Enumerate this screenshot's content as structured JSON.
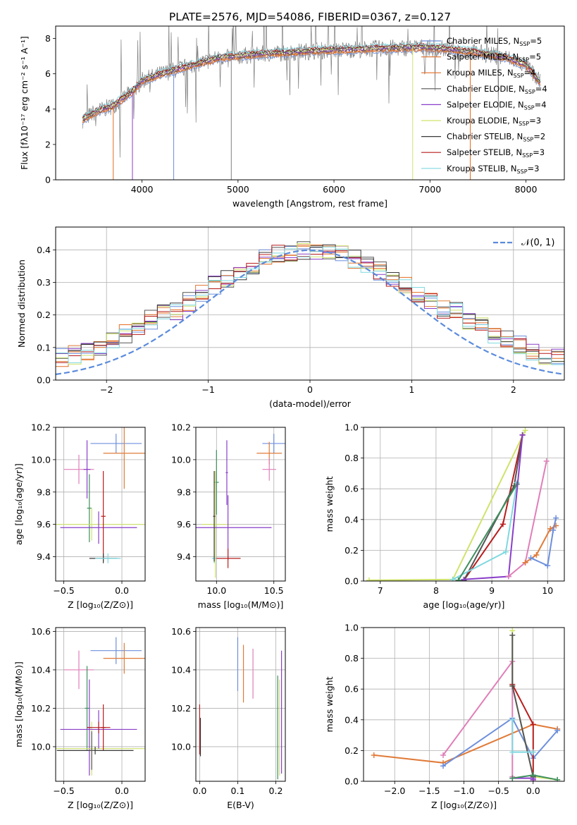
{
  "title": "PLATE=2576, MJD=54086, FIBERID=0367, z=0.127",
  "colors": {
    "chabrier_miles": "#6d8fdc",
    "salpeter_miles": "#e07b39",
    "kroupa_miles": "#e46d22",
    "chabrier_elodie": "#555555",
    "salpeter_elodie": "#8a3fc9",
    "kroupa_elodie": "#cfe36b",
    "chabrier_stelib": "#3a3a3a",
    "salpeter_stelib": "#b81d1d",
    "kroupa_stelib": "#7fd8e0",
    "pink": "#e07fb8",
    "green": "#3f8f5e",
    "gray": "#7f7f7f",
    "normal_curve": "#5b8bdc",
    "grid": "#b0b0b0"
  },
  "chart_data": [
    {
      "id": "spectrum",
      "type": "line",
      "title": "PLATE=2576, MJD=54086, FIBERID=0367, z=0.127",
      "xlabel": "wavelength [Angstrom, rest frame]",
      "ylabel": "Flux [fλ10⁻¹⁷ erg cm⁻² s⁻¹ A⁻¹]",
      "xlim": [
        3100,
        8400
      ],
      "ylim": [
        0,
        8.7
      ],
      "xticks": [
        "4000",
        "5000",
        "6000",
        "7000",
        "8000"
      ],
      "yticks": [
        "0",
        "2",
        "4",
        "6",
        "8"
      ],
      "legend_position": "top-right",
      "grid": false,
      "legend": [
        {
          "label": "Chabrier MILES, N",
          "sub": "SSP",
          "suffix": "=5",
          "color": "#6d8fdc"
        },
        {
          "label": "Salpeter MILES, N",
          "sub": "SSP",
          "suffix": "=5",
          "color": "#e07b39"
        },
        {
          "label": "Kroupa MILES, N",
          "sub": "SSP",
          "suffix": "=4",
          "color": "#e46d22"
        },
        {
          "label": "Chabrier ELODIE, N",
          "sub": "SSP",
          "suffix": "=4",
          "color": "#555555"
        },
        {
          "label": "Salpeter ELODIE, N",
          "sub": "SSP",
          "suffix": "=4",
          "color": "#8a3fc9"
        },
        {
          "label": "Kroupa ELODIE, N",
          "sub": "SSP",
          "suffix": "=3",
          "color": "#cfe36b"
        },
        {
          "label": "Chabrier STELIB, N",
          "sub": "SSP",
          "suffix": "=2",
          "color": "#3a3a3a"
        },
        {
          "label": "Salpeter STELIB, N",
          "sub": "SSP",
          "suffix": "=3",
          "color": "#b81d1d"
        },
        {
          "label": "Kroupa STELIB, N",
          "sub": "SSP",
          "suffix": "=3",
          "color": "#7fd8e0"
        }
      ],
      "continuum": {
        "x": [
          3380,
          3500,
          3700,
          3900,
          4000,
          4200,
          4400,
          4600,
          4800,
          5000,
          5200,
          5500,
          5800,
          6000,
          6300,
          6600,
          6900,
          7200,
          7500,
          7800,
          8000,
          8150
        ],
        "y": [
          3.4,
          3.8,
          4.2,
          5.0,
          5.6,
          6.0,
          6.3,
          6.6,
          6.9,
          7.0,
          7.1,
          7.2,
          7.3,
          7.35,
          7.4,
          7.45,
          7.5,
          7.4,
          7.2,
          6.9,
          6.5,
          5.5
        ]
      },
      "dropouts": [
        {
          "x": 3700,
          "color": "#e46d22"
        },
        {
          "x": 3900,
          "color": "#8a3fc9"
        },
        {
          "x": 4330,
          "color": "#6d8fdc"
        },
        {
          "x": 4930,
          "color": "#7f7f7f"
        },
        {
          "x": 6820,
          "color": "#cfe36b"
        },
        {
          "x": 7420,
          "color": "#e46d22"
        }
      ]
    },
    {
      "id": "residuals",
      "type": "line",
      "xlabel": "(data-model)/error",
      "ylabel": "Normed distribution",
      "xlim": [
        -2.5,
        2.5
      ],
      "ylim": [
        0,
        0.47
      ],
      "xticks": [
        "−2",
        "−1",
        "0",
        "1",
        "2"
      ],
      "yticks": [
        "0.0",
        "0.1",
        "0.2",
        "0.3",
        "0.4"
      ],
      "grid": true,
      "legend": [
        {
          "label": "𝒩(0, 1)",
          "color": "#5b8bdc",
          "style": "dashed"
        }
      ],
      "legend_position": "top-right",
      "histogram_bins": 40,
      "series": [
        {
          "name": "Chabrier MILES",
          "color": "#6d8fdc"
        },
        {
          "name": "Salpeter MILES",
          "color": "#e07b39"
        },
        {
          "name": "Kroupa MILES",
          "color": "#e46d22"
        },
        {
          "name": "Chabrier ELODIE",
          "color": "#555555"
        },
        {
          "name": "Salpeter ELODIE",
          "color": "#8a3fc9"
        },
        {
          "name": "Kroupa ELODIE",
          "color": "#cfe36b"
        },
        {
          "name": "Chabrier STELIB",
          "color": "#3a3a3a"
        },
        {
          "name": "Salpeter STELIB",
          "color": "#b81d1d"
        },
        {
          "name": "Kroupa STELIB",
          "color": "#7fd8e0"
        }
      ]
    },
    {
      "id": "age_vs_z",
      "type": "scatter",
      "xlabel": "Z [log₁₀(Z/Z⊙)]",
      "ylabel": "age  [log₁₀(age/yr)]",
      "xlim": [
        -0.57,
        0.2
      ],
      "ylim": [
        9.25,
        10.2
      ],
      "xticks": [
        "−0.5",
        "0.0"
      ],
      "yticks": [
        "9.4",
        "9.6",
        "9.8",
        "10.0",
        "10.2"
      ],
      "grid": true,
      "points": [
        {
          "x": -0.05,
          "y": 10.1,
          "xerr": 0.22,
          "yerr": 0.06,
          "color": "#6d8fdc"
        },
        {
          "x": 0.02,
          "y": 10.04,
          "xerr": 0.18,
          "yerr": 0.22,
          "color": "#e07b39"
        },
        {
          "x": -0.37,
          "y": 9.94,
          "xerr": 0.13,
          "yerr": 0.09,
          "color": "#e07fb8"
        },
        {
          "x": -0.3,
          "y": 9.94,
          "xerr": 0.03,
          "yerr": 0.18,
          "color": "#8a3fc9"
        },
        {
          "x": -0.28,
          "y": 9.7,
          "xerr": 0.02,
          "yerr": 0.21,
          "color": "#3f8f5e"
        },
        {
          "x": -0.26,
          "y": 9.6,
          "xerr": 0.5,
          "yerr": 0.1,
          "color": "#cfe36b"
        },
        {
          "x": -0.2,
          "y": 9.58,
          "xerr": 0.33,
          "yerr": 0.1,
          "color": "#8a3fc9"
        },
        {
          "x": -0.16,
          "y": 9.65,
          "xerr": 0.02,
          "yerr": 0.28,
          "color": "#b81d1d"
        },
        {
          "x": -0.16,
          "y": 9.39,
          "xerr": 0.12,
          "yerr": 0.03,
          "color": "#3a3a3a"
        },
        {
          "x": -0.12,
          "y": 9.39,
          "xerr": 0.11,
          "yerr": 0.03,
          "color": "#7fd8e0"
        }
      ]
    },
    {
      "id": "age_vs_mass",
      "type": "scatter",
      "xlabel": "mass [log₁₀(M/M⊙)]",
      "ylabel": "",
      "xlim": [
        9.82,
        10.6
      ],
      "ylim": [
        9.25,
        10.2
      ],
      "xticks": [
        "10.0",
        "10.5"
      ],
      "yticks": [
        "9.4",
        "9.6",
        "9.8",
        "10.0",
        "10.2"
      ],
      "grid": true,
      "points": [
        {
          "x": 10.5,
          "y": 10.1,
          "xerr": 0.1,
          "yerr": 0.06,
          "color": "#6d8fdc"
        },
        {
          "x": 10.46,
          "y": 10.04,
          "xerr": 0.11,
          "yerr": 0.07,
          "color": "#e07b39"
        },
        {
          "x": 10.46,
          "y": 9.94,
          "xerr": 0.06,
          "yerr": 0.07,
          "color": "#e07fb8"
        },
        {
          "x": 10.0,
          "y": 9.86,
          "xerr": 0.02,
          "yerr": 0.2,
          "color": "#3f8f5e"
        },
        {
          "x": 10.09,
          "y": 9.92,
          "xerr": 0.01,
          "yerr": 0.2,
          "color": "#8a3fc9"
        },
        {
          "x": 9.99,
          "y": 9.6,
          "xerr": 0.12,
          "yerr": 0.33,
          "color": "#cfe36b"
        },
        {
          "x": 10.1,
          "y": 9.58,
          "xerr": 0.38,
          "yerr": 0.2,
          "color": "#8a3fc9"
        },
        {
          "x": 10.1,
          "y": 9.39,
          "xerr": 0.11,
          "yerr": 0.06,
          "color": "#b81d1d"
        },
        {
          "x": 9.98,
          "y": 9.39,
          "xerr": 0.02,
          "yerr": 0.03,
          "color": "#7fd8e0"
        },
        {
          "x": 9.98,
          "y": 9.65,
          "xerr": 0.01,
          "yerr": 0.28,
          "color": "#3a3a3a"
        }
      ]
    },
    {
      "id": "weight_vs_age",
      "type": "line",
      "xlabel": "age  [log₁₀(age/yr)]",
      "ylabel": "mass weight",
      "xlim": [
        6.7,
        10.3
      ],
      "ylim": [
        0,
        1.0
      ],
      "xticks": [
        "7",
        "8",
        "9",
        "10"
      ],
      "yticks": [
        "0.0",
        "0.2",
        "0.4",
        "0.6",
        "0.8",
        "1.0"
      ],
      "grid": true,
      "series": [
        {
          "name": "Kroupa ELODIE",
          "color": "#cfe36b",
          "x": [
            6.8,
            8.3,
            9.6
          ],
          "y": [
            0.005,
            0.01,
            0.98
          ]
        },
        {
          "name": "Salpeter STELIB",
          "color": "#b81d1d",
          "x": [
            8.5,
            9.2,
            9.55
          ],
          "y": [
            0.005,
            0.37,
            0.95
          ]
        },
        {
          "name": "Chabrier ELODIE",
          "color": "#555555",
          "x": [
            8.5,
            9.4,
            9.55
          ],
          "y": [
            0.005,
            0.62,
            0.95
          ]
        },
        {
          "name": "Kroupa STELIB",
          "color": "#7fd8e0",
          "x": [
            8.3,
            9.25,
            9.45
          ],
          "y": [
            0.01,
            0.19,
            0.64
          ]
        },
        {
          "name": "Chabrier STELIB",
          "color": "#3f8f5e",
          "x": [
            8.4,
            9.45
          ],
          "y": [
            0.005,
            0.63
          ]
        },
        {
          "name": "Salpeter ELODIE",
          "color": "#8a3fc9",
          "x": [
            8.5,
            9.3,
            9.55
          ],
          "y": [
            0.01,
            0.03,
            0.95
          ]
        },
        {
          "name": "Pink",
          "color": "#e07fb8",
          "x": [
            9.3,
            9.6,
            9.98
          ],
          "y": [
            0.03,
            0.12,
            0.78
          ]
        },
        {
          "name": "Salpeter MILES",
          "color": "#e07b39",
          "x": [
            9.6,
            9.8,
            10.05,
            10.15
          ],
          "y": [
            0.12,
            0.17,
            0.34,
            0.36
          ]
        },
        {
          "name": "Chabrier MILES",
          "color": "#6d8fdc",
          "x": [
            9.7,
            10.0,
            10.1,
            10.15
          ],
          "y": [
            0.15,
            0.1,
            0.33,
            0.41
          ]
        }
      ]
    },
    {
      "id": "mass_vs_z",
      "type": "scatter",
      "xlabel": "Z [log₁₀(Z/Z⊙)]",
      "ylabel": "mass [log₁₀(M/M⊙)]",
      "xlim": [
        -0.57,
        0.2
      ],
      "ylim": [
        9.82,
        10.62
      ],
      "xticks": [
        "−0.5",
        "0.0"
      ],
      "yticks": [
        "10.0",
        "10.2",
        "10.4",
        "10.6"
      ],
      "grid": true,
      "points": [
        {
          "x": -0.05,
          "y": 10.5,
          "xerr": 0.22,
          "yerr": 0.07,
          "color": "#6d8fdc"
        },
        {
          "x": 0.02,
          "y": 10.46,
          "xerr": 0.18,
          "yerr": 0.08,
          "color": "#e07b39"
        },
        {
          "x": -0.37,
          "y": 10.4,
          "xerr": 0.13,
          "yerr": 0.1,
          "color": "#e07fb8"
        },
        {
          "x": -0.3,
          "y": 10.2,
          "xerr": 0.02,
          "yerr": 0.22,
          "color": "#3f8f5e"
        },
        {
          "x": -0.28,
          "y": 10.1,
          "xerr": 0.02,
          "yerr": 0.25,
          "color": "#8a3fc9"
        },
        {
          "x": -0.26,
          "y": 9.99,
          "xerr": 0.5,
          "yerr": 0.14,
          "color": "#cfe36b"
        },
        {
          "x": -0.2,
          "y": 10.09,
          "xerr": 0.33,
          "yerr": 0.1,
          "color": "#8a3fc9"
        },
        {
          "x": -0.2,
          "y": 10.1,
          "xerr": 0.1,
          "yerr": 0.03,
          "color": "#b81d1d"
        },
        {
          "x": -0.16,
          "y": 10.1,
          "xerr": 0.02,
          "yerr": 0.12,
          "color": "#b81d1d"
        },
        {
          "x": -0.23,
          "y": 9.98,
          "xerr": 0.33,
          "yerr": 0.02,
          "color": "#3a3a3a"
        },
        {
          "x": -0.26,
          "y": 9.98,
          "xerr": 0.02,
          "yerr": 0.1,
          "color": "#555555"
        }
      ]
    },
    {
      "id": "mass_vs_ebv",
      "type": "scatter",
      "xlabel": "E(B-V)",
      "ylabel": "",
      "xlim": [
        -0.01,
        0.225
      ],
      "ylim": [
        9.82,
        10.62
      ],
      "xticks": [
        "0.0",
        "0.1",
        "0.2"
      ],
      "yticks": [
        "10.0",
        "10.2",
        "10.4",
        "10.6"
      ],
      "grid": true,
      "points": [
        {
          "x": 0.1,
          "y": 10.43,
          "xerr": 0.0,
          "yerr": 0.14,
          "color": "#6d8fdc"
        },
        {
          "x": 0.115,
          "y": 10.38,
          "xerr": 0.0,
          "yerr": 0.15,
          "color": "#e07b39"
        },
        {
          "x": 0.14,
          "y": 10.38,
          "xerr": 0.0,
          "yerr": 0.13,
          "color": "#e07fb8"
        },
        {
          "x": 0.205,
          "y": 10.1,
          "xerr": 0.0,
          "yerr": 0.27,
          "color": "#3f8f5e"
        },
        {
          "x": 0.21,
          "y": 10.1,
          "xerr": 0.0,
          "yerr": 0.25,
          "color": "#cfe36b"
        },
        {
          "x": 0.215,
          "y": 10.18,
          "xerr": 0.0,
          "yerr": 0.32,
          "color": "#8a3fc9"
        },
        {
          "x": 0.0,
          "y": 10.09,
          "xerr": 0.0,
          "yerr": 0.13,
          "color": "#b81d1d"
        },
        {
          "x": 0.002,
          "y": 10.05,
          "xerr": 0.0,
          "yerr": 0.1,
          "color": "#3a3a3a"
        }
      ]
    },
    {
      "id": "weight_vs_z",
      "type": "line",
      "xlabel": "Z [log₁₀(Z/Z⊙)]",
      "ylabel": "mass weight",
      "xlim": [
        -2.45,
        0.45
      ],
      "ylim": [
        0,
        1.0
      ],
      "xticks": [
        "−2.0",
        "−1.5",
        "−1.0",
        "−0.5",
        "0.0"
      ],
      "yticks": [
        "0.0",
        "0.2",
        "0.4",
        "0.6",
        "0.8",
        "1.0"
      ],
      "grid": true,
      "series": [
        {
          "name": "Salpeter MILES",
          "color": "#e07b39",
          "x": [
            -2.3,
            -1.3,
            0.0,
            0.35
          ],
          "y": [
            0.17,
            0.12,
            0.37,
            0.34
          ]
        },
        {
          "name": "Chabrier MILES",
          "color": "#6d8fdc",
          "x": [
            -1.3,
            -0.3,
            0.0,
            0.35
          ],
          "y": [
            0.1,
            0.41,
            0.15,
            0.33
          ]
        },
        {
          "name": "Pink",
          "color": "#e07fb8",
          "x": [
            -1.3,
            -0.3,
            -0.3
          ],
          "y": [
            0.17,
            0.78,
            0.03
          ]
        },
        {
          "name": "Kroupa ELODIE",
          "color": "#cfe36b",
          "x": [
            -0.3,
            -0.3,
            0.0,
            0.35
          ],
          "y": [
            0.98,
            0.62,
            0.03,
            0.01
          ]
        },
        {
          "name": "Salpeter STELIB",
          "color": "#b81d1d",
          "x": [
            -0.3,
            0.0,
            0.0
          ],
          "y": [
            0.63,
            0.37,
            0.01
          ]
        },
        {
          "name": "Chabrier ELODIE",
          "color": "#555555",
          "x": [
            -0.3,
            -0.3,
            0.0
          ],
          "y": [
            0.95,
            0.62,
            0.03
          ]
        },
        {
          "name": "Kroupa STELIB",
          "color": "#7fd8e0",
          "x": [
            -0.3,
            -0.3,
            0.0
          ],
          "y": [
            0.4,
            0.19,
            0.19
          ]
        },
        {
          "name": "Salpeter ELODIE",
          "color": "#8a3fc9",
          "x": [
            -0.3,
            0.0,
            0.0
          ],
          "y": [
            0.02,
            0.02,
            0.01
          ]
        },
        {
          "name": "Chabrier STELIB",
          "color": "#3f8f5e",
          "x": [
            -0.3,
            0.0,
            0.35
          ],
          "y": [
            0.02,
            0.04,
            0.01
          ]
        }
      ]
    }
  ]
}
